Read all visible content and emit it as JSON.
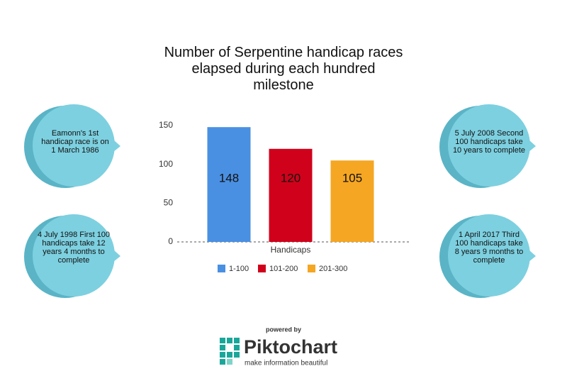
{
  "chart_data": {
    "type": "bar",
    "title": "Number of Serpentine handicap races elapsed during each hundred milestone",
    "x_label": "Handicaps",
    "series": [
      {
        "name": "1-100",
        "color": "#4a90e2",
        "values": [
          148
        ]
      },
      {
        "name": "101-200",
        "color": "#d0021b",
        "values": [
          120
        ]
      },
      {
        "name": "201-300",
        "color": "#f5a623",
        "values": [
          105
        ]
      }
    ],
    "ylim": [
      0,
      150
    ],
    "yticks": [
      0,
      50,
      100,
      150
    ],
    "grid": false
  },
  "callouts": [
    "Eamonn's 1st handicap race is on 1 March 1986",
    "4 July 1998 First 100 handicaps take 12 years 4 months to complete",
    "5 July 2008 Second 100 handicaps take 10 years to complete",
    "1 April 2017 Third 100 handicaps take 8 years 9 months to complete"
  ],
  "footer": {
    "powered_by": "powered by",
    "brand": "Piktochart",
    "tagline": "make information beautiful"
  }
}
